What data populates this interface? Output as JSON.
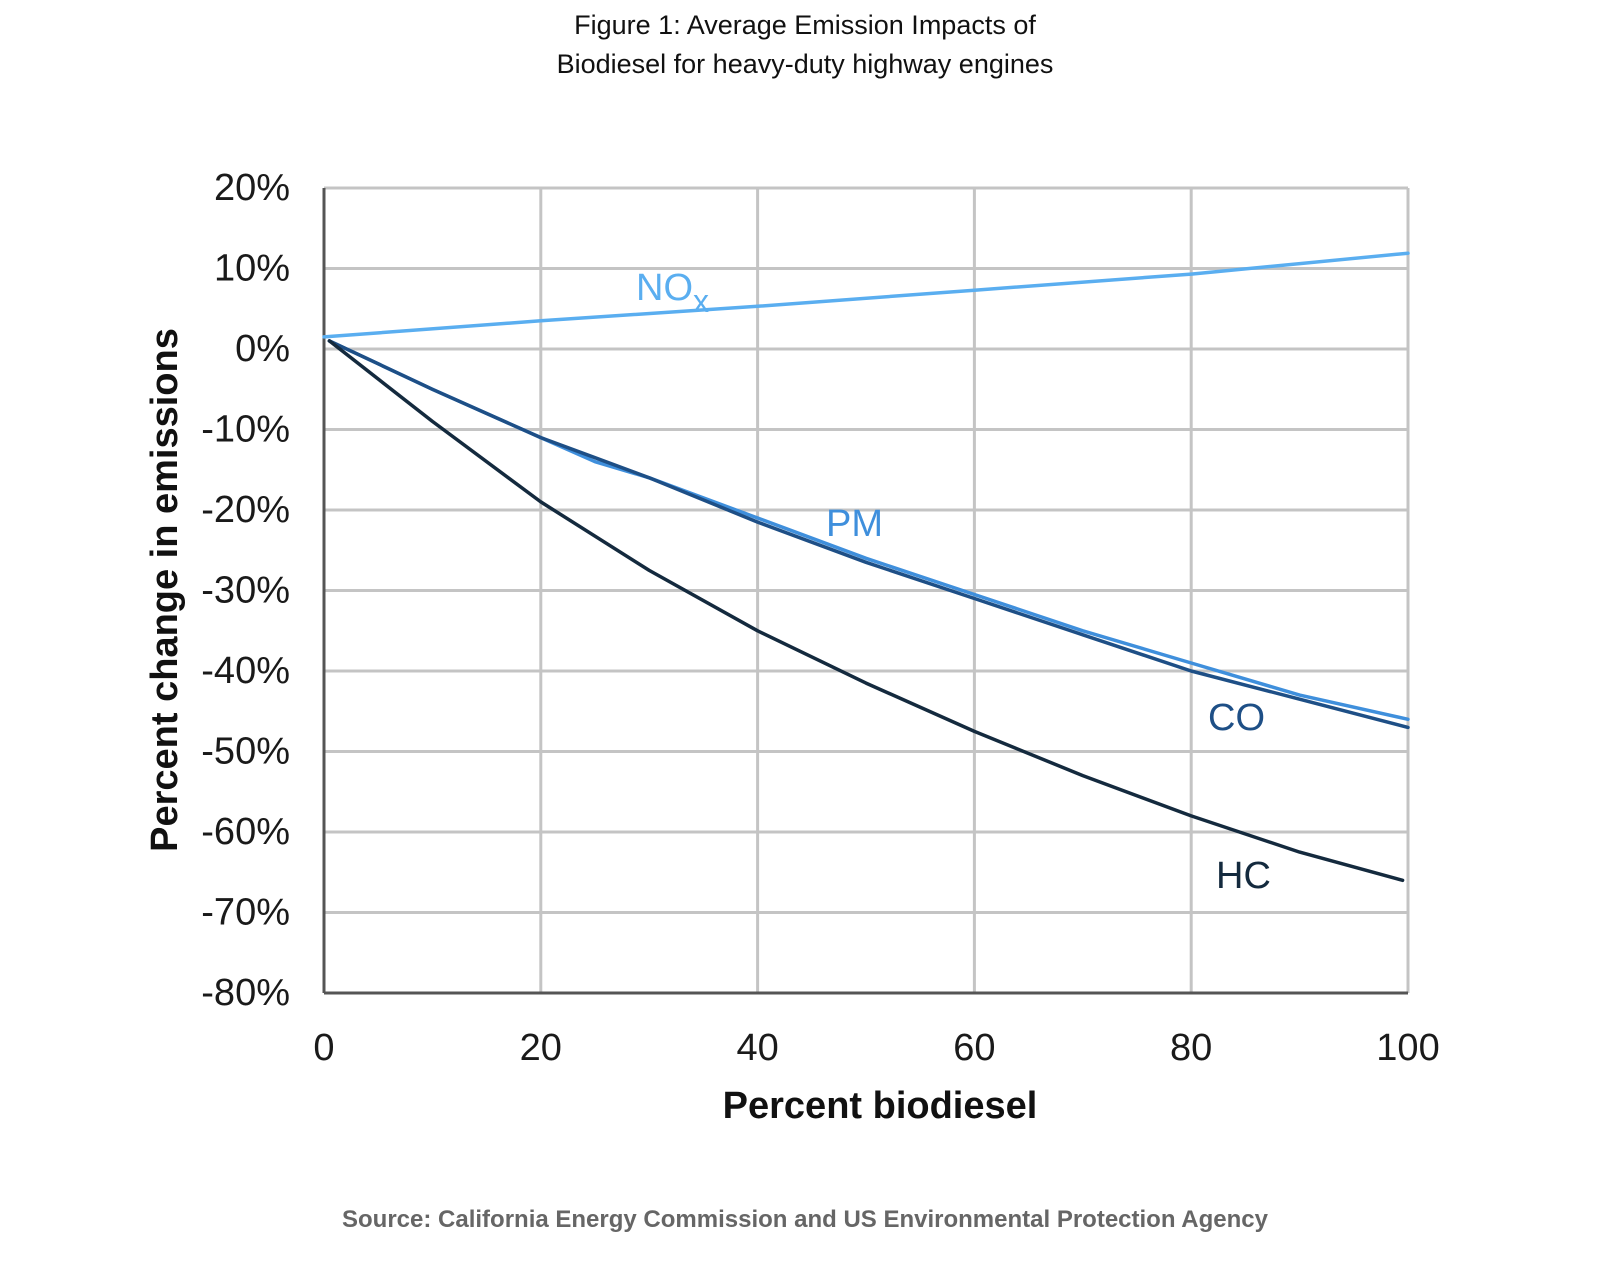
{
  "chart_data": {
    "type": "line",
    "title": [
      "Figure 1: Average Emission Impacts of",
      "Biodiesel for heavy-duty highway engines"
    ],
    "xlabel": "Percent biodiesel",
    "ylabel": "Percent change in emissions",
    "xlim": [
      0,
      100
    ],
    "ylim": [
      -80,
      20
    ],
    "xticks": [
      0,
      20,
      40,
      60,
      80,
      100
    ],
    "xtick_labels": [
      "0",
      "20",
      "40",
      "60",
      "80",
      "100"
    ],
    "yticks": [
      20,
      10,
      0,
      -10,
      -20,
      -30,
      -40,
      -50,
      -60,
      -70,
      -80
    ],
    "ytick_labels": [
      "20%",
      "10%",
      "0%",
      "-10%",
      "-20%",
      "-30%",
      "-40%",
      "-50%",
      "-60%",
      "-70%",
      "-80%"
    ],
    "grid": true,
    "series": [
      {
        "name": "NO",
        "subscript": "x",
        "color": "#5aaef0",
        "x": [
          0,
          20,
          40,
          60,
          80,
          100
        ],
        "y": [
          1.5,
          3.5,
          5.3,
          7.3,
          9.3,
          11.9
        ]
      },
      {
        "name": "PM",
        "color": "#3f8fdc",
        "x": [
          0.5,
          10,
          20,
          25,
          30,
          40,
          50,
          60,
          70,
          80,
          90,
          100
        ],
        "y": [
          1,
          -5,
          -11,
          -14,
          -16,
          -21,
          -26,
          -30.5,
          -35,
          -39,
          -43,
          -46
        ]
      },
      {
        "name": "CO",
        "color": "#1e4f86",
        "x": [
          0.5,
          10,
          20,
          25,
          30,
          40,
          50,
          60,
          70,
          80,
          90,
          100
        ],
        "y": [
          1,
          -5,
          -11,
          -13.5,
          -16,
          -21.5,
          -26.5,
          -31,
          -35.5,
          -40,
          -43.5,
          -47
        ]
      },
      {
        "name": "HC",
        "color": "#142a3e",
        "x": [
          0.5,
          10,
          20,
          30,
          40,
          50,
          60,
          70,
          80,
          90,
          99.5
        ],
        "y": [
          1,
          -9,
          -19,
          -27.5,
          -35,
          -41.5,
          -47.5,
          -53,
          -58,
          -62.5,
          -66
        ]
      }
    ],
    "source": "Source: California Energy Commission and US Environmental Protection Agency"
  }
}
